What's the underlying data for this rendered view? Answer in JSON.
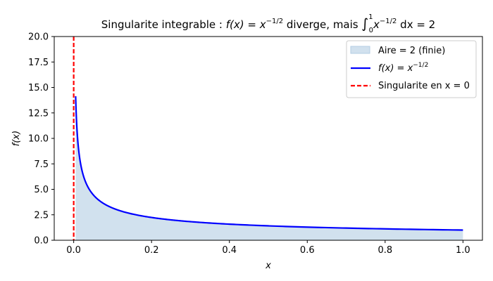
{
  "chart_data": {
    "type": "line",
    "title": {
      "prefix": "Singularite integrable : ",
      "func": "f(x) = x",
      "exp": "−1/2",
      "middle": " diverge, mais ",
      "integral": "∫",
      "int_upper": "1",
      "int_lower": "0",
      "integrand": "x",
      "integrand_exp": "−1/2",
      "suffix": " dx = 2"
    },
    "xlabel": "x",
    "ylabel": "f(x)",
    "xlim": [
      -0.05,
      1.05
    ],
    "ylim": [
      0,
      20
    ],
    "x_ticks": [
      0.0,
      0.2,
      0.4,
      0.6,
      0.8,
      1.0
    ],
    "x_tick_labels": [
      "0.0",
      "0.2",
      "0.4",
      "0.6",
      "0.8",
      "1.0"
    ],
    "y_ticks": [
      0,
      2.5,
      5,
      7.5,
      10,
      12.5,
      15,
      17.5,
      20
    ],
    "y_tick_labels": [
      "0.0",
      "2.5",
      "5.0",
      "7.5",
      "10.0",
      "12.5",
      "15.0",
      "17.5",
      "20.0"
    ],
    "grid": false,
    "legend_position": "top-right",
    "series": [
      {
        "name": "Aire = 2 (finie)",
        "kind": "area",
        "color": "#b3cde3",
        "x": [
          0.005,
          0.007,
          0.01,
          0.015,
          0.02,
          0.03,
          0.04,
          0.05,
          0.07,
          0.1,
          0.15,
          0.2,
          0.3,
          0.4,
          0.5,
          0.6,
          0.7,
          0.8,
          0.9,
          1.0
        ],
        "y": [
          14.14,
          11.95,
          10.0,
          8.16,
          7.07,
          5.77,
          5.0,
          4.47,
          3.78,
          3.16,
          2.58,
          2.24,
          1.83,
          1.58,
          1.41,
          1.29,
          1.2,
          1.12,
          1.05,
          1.0
        ]
      },
      {
        "name": "f(x) = x",
        "name_exp": "−1/2",
        "kind": "line",
        "color": "#0000ff",
        "x": [
          0.005,
          0.007,
          0.01,
          0.015,
          0.02,
          0.03,
          0.04,
          0.05,
          0.07,
          0.1,
          0.15,
          0.2,
          0.3,
          0.4,
          0.5,
          0.6,
          0.7,
          0.8,
          0.9,
          1.0
        ],
        "y": [
          14.14,
          11.95,
          10.0,
          8.16,
          7.07,
          5.77,
          5.0,
          4.47,
          3.78,
          3.16,
          2.58,
          2.24,
          1.83,
          1.58,
          1.41,
          1.29,
          1.2,
          1.12,
          1.05,
          1.0
        ]
      },
      {
        "name": "Singularite en x = 0",
        "kind": "vline",
        "color": "#ff0000",
        "x": 0
      }
    ]
  }
}
